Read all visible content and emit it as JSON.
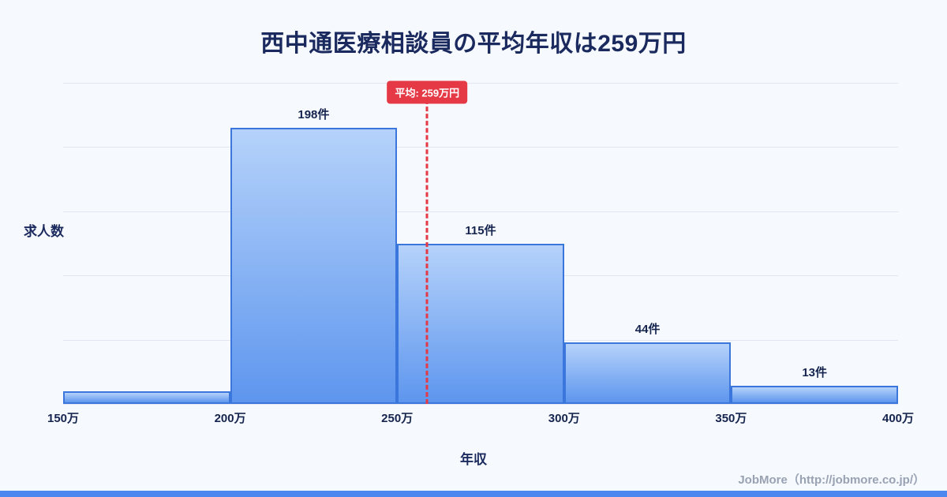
{
  "title": "西中通医療相談員の平均年収は259万円",
  "footer": {
    "credit": "JobMore（http://jobmore.co.jp/）"
  },
  "colors": {
    "background": "#f6f9fe",
    "navy": "#1b2a5e",
    "grid": "#e1e7f2",
    "barBorder": "#3b76dd",
    "barTop": "#b5d2fa",
    "barBottom": "#5e96ee",
    "red": "#e63946",
    "footerGray": "#98a2b3",
    "bottomBar": "#4b87ee"
  },
  "chart_data": {
    "type": "bar",
    "subtype": "histogram",
    "title": "西中通医療相談員の平均年収は259万円",
    "xlabel": "年収",
    "ylabel": "求人数",
    "bin_edges": [
      150,
      200,
      250,
      300,
      350,
      400
    ],
    "bin_unit": "万円",
    "x_tick_labels": [
      "150万",
      "200万",
      "250万",
      "300万",
      "350万",
      "400万"
    ],
    "series": [
      {
        "name": "求人数",
        "values": [
          9,
          198,
          115,
          44,
          13
        ]
      }
    ],
    "data_labels": [
      "",
      "198件",
      "115件",
      "44件",
      "13件"
    ],
    "average_line": {
      "x": 259,
      "label": "平均: 259万円",
      "color": "#e63946",
      "style": "dashed"
    },
    "ylim": [
      0,
      230
    ],
    "grid": "horizontal",
    "legend": "none"
  }
}
